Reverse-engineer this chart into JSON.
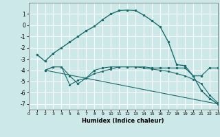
{
  "xlabel": "Humidex (Indice chaleur)",
  "xlim": [
    0,
    23
  ],
  "ylim": [
    -7.5,
    2.0
  ],
  "yticks": [
    1,
    0,
    -1,
    -2,
    -3,
    -4,
    -5,
    -6,
    -7
  ],
  "xticks": [
    0,
    1,
    2,
    3,
    4,
    5,
    6,
    7,
    8,
    9,
    10,
    11,
    12,
    13,
    14,
    15,
    16,
    17,
    18,
    19,
    20,
    21,
    22,
    23
  ],
  "background_color": "#cce8e8",
  "grid_color": "#ffffff",
  "line_color": "#1a6b6b",
  "curve1_x": [
    1,
    2,
    3,
    4,
    5,
    6,
    7,
    8,
    9,
    10,
    11,
    12,
    13,
    14,
    15,
    16,
    17,
    18,
    19,
    20,
    21,
    22,
    23
  ],
  "curve1_y": [
    -2.6,
    -3.2,
    -2.5,
    -2.0,
    -1.5,
    -1.0,
    -0.5,
    -0.1,
    0.5,
    1.0,
    1.3,
    1.35,
    1.3,
    0.9,
    0.4,
    -0.15,
    -1.5,
    -3.5,
    -3.6,
    -4.5,
    -5.8,
    -6.5,
    -7.0
  ],
  "curve2_x": [
    2,
    3,
    4,
    5,
    6,
    7,
    8,
    9,
    10,
    11,
    12,
    13,
    14,
    15,
    16,
    17,
    18,
    19,
    20,
    21,
    22,
    23
  ],
  "curve2_y": [
    -4.0,
    -3.7,
    -3.7,
    -4.5,
    -5.2,
    -4.7,
    -4.0,
    -3.8,
    -3.7,
    -3.7,
    -3.7,
    -3.7,
    -3.7,
    -3.8,
    -3.8,
    -3.8,
    -3.8,
    -3.8,
    -4.5,
    -4.5,
    -3.8,
    -3.8
  ],
  "curve3_x": [
    2,
    23
  ],
  "curve3_y": [
    -4.0,
    -7.0
  ],
  "curve4_x": [
    2,
    3,
    4,
    5,
    6,
    7,
    8,
    9,
    10,
    11,
    12,
    13,
    14,
    15,
    16,
    17,
    18,
    19,
    20,
    21,
    22,
    23
  ],
  "curve4_y": [
    -4.0,
    -3.7,
    -3.7,
    -5.3,
    -4.9,
    -4.7,
    -4.3,
    -4.1,
    -3.9,
    -3.7,
    -3.7,
    -3.7,
    -3.8,
    -3.9,
    -4.0,
    -4.1,
    -4.3,
    -4.5,
    -4.8,
    -5.2,
    -6.2,
    -6.9
  ]
}
